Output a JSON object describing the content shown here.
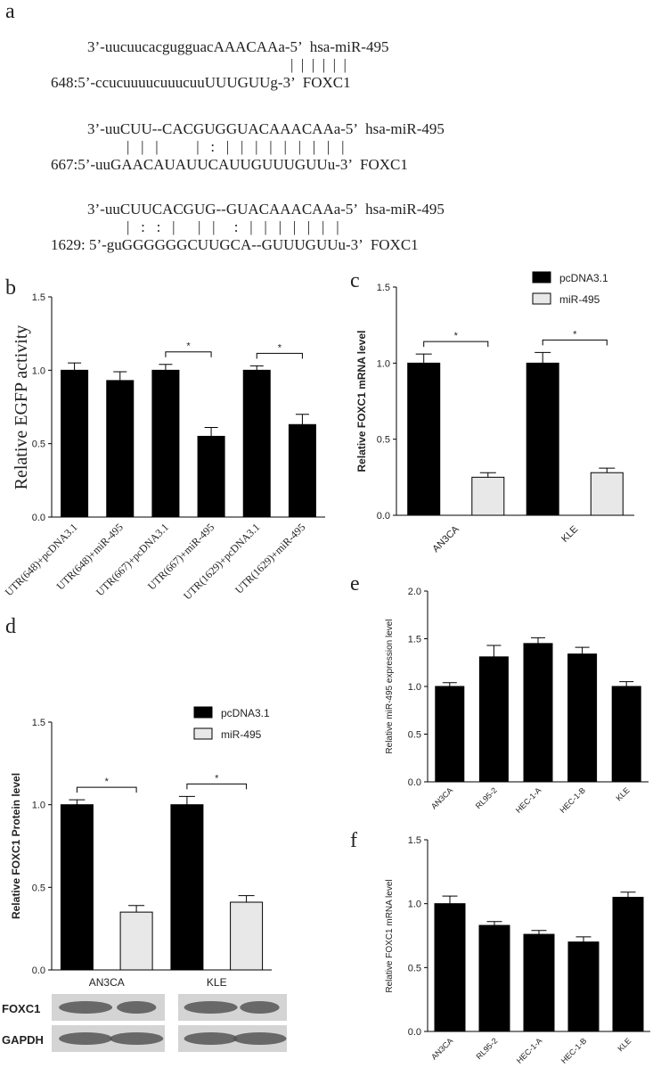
{
  "panel_a": {
    "label": "a",
    "alignments": [
      {
        "mirna": "3’-uucuucacgugguacAAACAAa-5’",
        "mirna_name": "hsa-miR-495",
        "pairing": "|  |  |  |  |  |",
        "target": "648:5’-ccucuuuucuuucuuUUUGUUg-3’",
        "target_name": "FOXC1"
      },
      {
        "mirna": "3’-uuCUU--CACGUGGUACAAACAAa-5’",
        "mirna_name": "hsa-miR-495",
        "pairing": "|   |   |          |   :   |   |   |   |   |   |   |   |   |",
        "target": "667:5’-uuGAACAUAUUCAUUGUUUGUUu-3’",
        "target_name": "FOXC1"
      },
      {
        "mirna": "3’-uuCUUCACGUG--GUACAAACAAa-5’",
        "mirna_name": "hsa-miR-495",
        "pairing": "|   :   :   |      |   |     :   |   |   |   |   |   |   |",
        "target": "1629: 5’-guGGGGGGCUUGCA--GUUUGUUu-3’",
        "target_name": "FOXC1"
      }
    ]
  },
  "chart_data": [
    {
      "type": "bar",
      "panel": "b",
      "y_label": "Relative EGFP activity",
      "categories": [
        "UTR(648)+pcDNA3.1",
        "UTR(648)+miR-495",
        "UTR(667)+pcDNA3.1",
        "UTR(667)+miR-495",
        "UTR(1629)+pcDNA3.1",
        "UTR(1629)+miR-495"
      ],
      "values": [
        1.0,
        0.93,
        1.0,
        0.55,
        1.0,
        0.63
      ],
      "errors": [
        0.05,
        0.06,
        0.04,
        0.06,
        0.03,
        0.07
      ],
      "color": "#000000",
      "ylim": [
        0,
        1.5
      ],
      "yticks": [
        {
          "value": 0,
          "label": "0.0"
        },
        {
          "value": 0.5,
          "label": "0.5"
        },
        {
          "value": 1,
          "label": "1.0"
        },
        {
          "value": 1.5,
          "label": "1.5"
        }
      ],
      "annotations": [
        "*",
        "*"
      ]
    },
    {
      "type": "grouped_bar",
      "panel": "c",
      "y_label": "Relative FOXC1 mRNA level",
      "categories": [
        "AN3CA",
        "KLE"
      ],
      "series": [
        {
          "name": "pcDNA3.1",
          "color": "#000000",
          "values": [
            1.0,
            1.0
          ],
          "errors": [
            0.06,
            0.07
          ]
        },
        {
          "name": "miR-495",
          "color": "#e8e8e8",
          "values": [
            0.25,
            0.28
          ],
          "errors": [
            0.03,
            0.03
          ]
        }
      ],
      "ylim": [
        0,
        1.5
      ],
      "yticks": [
        {
          "value": 0,
          "label": "0.0"
        },
        {
          "value": 0.5,
          "label": "0.5"
        },
        {
          "value": 1,
          "label": "1.0"
        },
        {
          "value": 1.5,
          "label": "1.5"
        }
      ],
      "annotations": [
        "*",
        "*"
      ]
    },
    {
      "type": "grouped_bar",
      "panel": "d",
      "y_label": "Relative FOXC1 Protein level",
      "categories": [
        "AN3CA",
        "KLE"
      ],
      "series": [
        {
          "name": "pcDNA3.1",
          "color": "#000000",
          "values": [
            1.0,
            1.0
          ],
          "errors": [
            0.03,
            0.05
          ]
        },
        {
          "name": "miR-495",
          "color": "#e8e8e8",
          "values": [
            0.35,
            0.41
          ],
          "errors": [
            0.04,
            0.04
          ]
        }
      ],
      "ylim": [
        0,
        1.5
      ],
      "yticks": [
        {
          "value": 0,
          "label": "0.0"
        },
        {
          "value": 0.5,
          "label": "0.5"
        },
        {
          "value": 1,
          "label": "1.0"
        },
        {
          "value": 1.5,
          "label": "1.5"
        }
      ],
      "annotations": [
        "*",
        "*"
      ]
    },
    {
      "type": "bar",
      "panel": "e",
      "y_label": "Relative miR-495 expression level",
      "categories": [
        "AN3CA",
        "RL95-2",
        "HEC-1-A",
        "HEC-1-B",
        "KLE"
      ],
      "values": [
        1.0,
        1.31,
        1.45,
        1.34,
        1.0
      ],
      "errors": [
        0.04,
        0.12,
        0.06,
        0.07,
        0.05
      ],
      "color": "#000000",
      "ylim": [
        0,
        2
      ],
      "yticks": [
        {
          "value": 0,
          "label": "0.0"
        },
        {
          "value": 0.5,
          "label": "0.5"
        },
        {
          "value": 1,
          "label": "1.0"
        },
        {
          "value": 1.5,
          "label": "1.5"
        },
        {
          "value": 2,
          "label": "2.0"
        }
      ]
    },
    {
      "type": "bar",
      "panel": "f",
      "y_label": "Relative FOXC1 mRNA level",
      "categories": [
        "AN3CA",
        "RL95-2",
        "HEC-1-A",
        "HEC-1-B",
        "KLE"
      ],
      "values": [
        1.0,
        0.83,
        0.76,
        0.7,
        1.05
      ],
      "errors": [
        0.06,
        0.03,
        0.03,
        0.04,
        0.04
      ],
      "color": "#000000",
      "ylim": [
        0,
        1.5
      ],
      "yticks": [
        {
          "value": 0,
          "label": "0.0"
        },
        {
          "value": 0.5,
          "label": "0.5"
        },
        {
          "value": 1,
          "label": "1.0"
        },
        {
          "value": 1.5,
          "label": "1.5"
        }
      ]
    }
  ],
  "western_blot": {
    "labels": [
      "FOXC1",
      "GAPDH"
    ]
  }
}
